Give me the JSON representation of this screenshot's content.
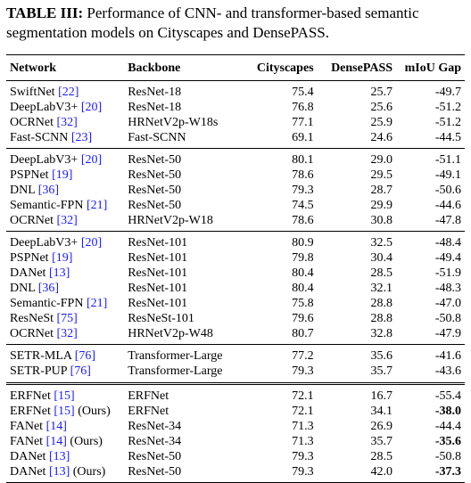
{
  "caption": {
    "label": "TABLE III:",
    "text": " Performance of CNN- and transformer-based semantic segmentation models on Cityscapes and DensePASS."
  },
  "headers": {
    "network": "Network",
    "backbone": "Backbone",
    "cityscapes": "Cityscapes",
    "densepass": "DensePASS",
    "gap": "mIoU Gap"
  },
  "rows": [
    {
      "name": "SwiftNet",
      "ref": "[22]",
      "suffix": "",
      "backbone": "ResNet-18",
      "cityscapes": "75.4",
      "densepass": "25.7",
      "gap": "-49.7",
      "gap_bold": false
    },
    {
      "name": "DeepLabV3+",
      "ref": "[20]",
      "suffix": "",
      "backbone": "ResNet-18",
      "cityscapes": "76.8",
      "densepass": "25.6",
      "gap": "-51.2",
      "gap_bold": false
    },
    {
      "name": "OCRNet",
      "ref": "[32]",
      "suffix": "",
      "backbone": "HRNetV2p-W18s",
      "cityscapes": "77.1",
      "densepass": "25.9",
      "gap": "-51.2",
      "gap_bold": false
    },
    {
      "name": "Fast-SCNN",
      "ref": "[23]",
      "suffix": "",
      "backbone": "Fast-SCNN",
      "cityscapes": "69.1",
      "densepass": "24.6",
      "gap": "-44.5",
      "gap_bold": false
    },
    {
      "name": "DeepLabV3+",
      "ref": "[20]",
      "suffix": "",
      "backbone": "ResNet-50",
      "cityscapes": "80.1",
      "densepass": "29.0",
      "gap": "-51.1",
      "gap_bold": false
    },
    {
      "name": "PSPNet",
      "ref": "[19]",
      "suffix": "",
      "backbone": "ResNet-50",
      "cityscapes": "78.6",
      "densepass": "29.5",
      "gap": "-49.1",
      "gap_bold": false
    },
    {
      "name": "DNL",
      "ref": "[36]",
      "suffix": "",
      "backbone": "ResNet-50",
      "cityscapes": "79.3",
      "densepass": "28.7",
      "gap": "-50.6",
      "gap_bold": false
    },
    {
      "name": "Semantic-FPN",
      "ref": "[21]",
      "suffix": "",
      "backbone": "ResNet-50",
      "cityscapes": "74.5",
      "densepass": "29.9",
      "gap": "-44.6",
      "gap_bold": false
    },
    {
      "name": "OCRNet",
      "ref": "[32]",
      "suffix": "",
      "backbone": "HRNetV2p-W18",
      "cityscapes": "78.6",
      "densepass": "30.8",
      "gap": "-47.8",
      "gap_bold": false
    },
    {
      "name": "DeepLabV3+",
      "ref": "[20]",
      "suffix": "",
      "backbone": "ResNet-101",
      "cityscapes": "80.9",
      "densepass": "32.5",
      "gap": "-48.4",
      "gap_bold": false
    },
    {
      "name": "PSPNet",
      "ref": "[19]",
      "suffix": "",
      "backbone": "ResNet-101",
      "cityscapes": "79.8",
      "densepass": "30.4",
      "gap": "-49.4",
      "gap_bold": false
    },
    {
      "name": "DANet",
      "ref": "[13]",
      "suffix": "",
      "backbone": "ResNet-101",
      "cityscapes": "80.4",
      "densepass": "28.5",
      "gap": "-51.9",
      "gap_bold": false
    },
    {
      "name": "DNL",
      "ref": "[36]",
      "suffix": "",
      "backbone": "ResNet-101",
      "cityscapes": "80.4",
      "densepass": "32.1",
      "gap": "-48.3",
      "gap_bold": false
    },
    {
      "name": "Semantic-FPN",
      "ref": "[21]",
      "suffix": "",
      "backbone": "ResNet-101",
      "cityscapes": "75.8",
      "densepass": "28.8",
      "gap": "-47.0",
      "gap_bold": false
    },
    {
      "name": "ResNeSt",
      "ref": "[75]",
      "suffix": "",
      "backbone": "ResNeSt-101",
      "cityscapes": "79.6",
      "densepass": "28.8",
      "gap": "-50.8",
      "gap_bold": false
    },
    {
      "name": "OCRNet",
      "ref": "[32]",
      "suffix": "",
      "backbone": "HRNetV2p-W48",
      "cityscapes": "80.7",
      "densepass": "32.8",
      "gap": "-47.9",
      "gap_bold": false
    },
    {
      "name": "SETR-MLA",
      "ref": "[76]",
      "suffix": "",
      "backbone": "Transformer-Large",
      "cityscapes": "77.2",
      "densepass": "35.6",
      "gap": "-41.6",
      "gap_bold": false
    },
    {
      "name": "SETR-PUP",
      "ref": "[76]",
      "suffix": "",
      "backbone": "Transformer-Large",
      "cityscapes": "79.3",
      "densepass": "35.7",
      "gap": "-43.6",
      "gap_bold": false
    },
    {
      "name": "ERFNet",
      "ref": "[15]",
      "suffix": "",
      "backbone": "ERFNet",
      "cityscapes": "72.1",
      "densepass": "16.7",
      "gap": "-55.4",
      "gap_bold": false
    },
    {
      "name": "ERFNet",
      "ref": "[15]",
      "suffix": " (Ours)",
      "backbone": "ERFNet",
      "cityscapes": "72.1",
      "densepass": "34.1",
      "gap": "-38.0",
      "gap_bold": true
    },
    {
      "name": "FANet",
      "ref": "[14]",
      "suffix": "",
      "backbone": "ResNet-34",
      "cityscapes": "71.3",
      "densepass": "26.9",
      "gap": "-44.4",
      "gap_bold": false
    },
    {
      "name": "FANet",
      "ref": "[14]",
      "suffix": " (Ours)",
      "backbone": "ResNet-34",
      "cityscapes": "71.3",
      "densepass": "35.7",
      "gap": "-35.6",
      "gap_bold": true
    },
    {
      "name": "DANet",
      "ref": "[13]",
      "suffix": "",
      "backbone": "ResNet-50",
      "cityscapes": "79.3",
      "densepass": "28.5",
      "gap": "-50.8",
      "gap_bold": false
    },
    {
      "name": "DANet",
      "ref": "[13]",
      "suffix": " (Ours)",
      "backbone": "ResNet-50",
      "cityscapes": "79.3",
      "densepass": "42.0",
      "gap": "-37.3",
      "gap_bold": true
    }
  ]
}
